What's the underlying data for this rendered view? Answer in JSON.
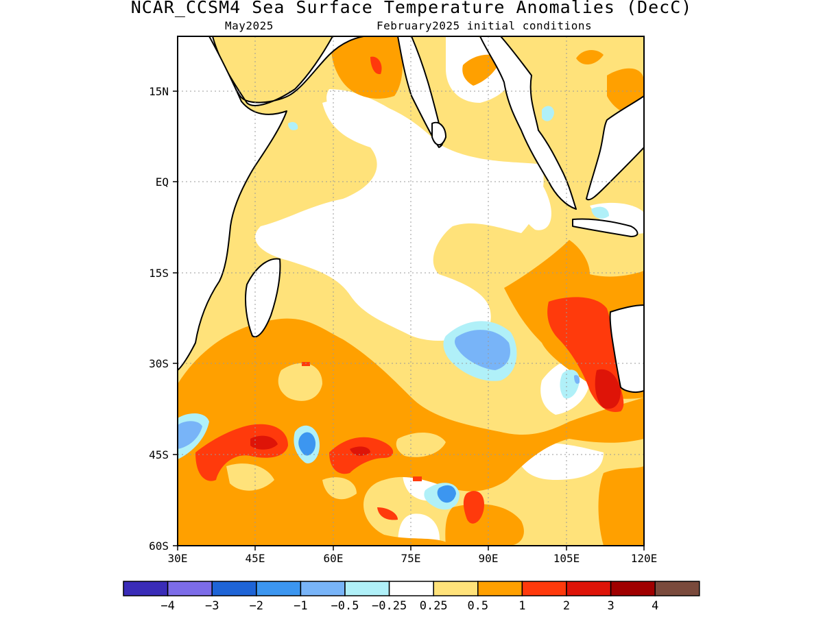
{
  "header": {
    "title": "NCAR_CCSM4 Sea Surface Temperature Anomalies (DecC)",
    "valid_month": "May2025",
    "init_conditions": "February2025 initial conditions"
  },
  "axes": {
    "lat_labels": [
      "15N",
      "EQ",
      "15S",
      "30S",
      "45S",
      "60S"
    ],
    "lon_labels": [
      "30E",
      "45E",
      "60E",
      "75E",
      "90E",
      "105E",
      "120E"
    ],
    "lat_range": [
      -60,
      24
    ],
    "lon_range": [
      30,
      120
    ],
    "grid": "dotted"
  },
  "colorbar": {
    "colors": [
      "#3a2cb8",
      "#7c6ce8",
      "#1e64d6",
      "#3c96f0",
      "#78b4f8",
      "#b0f0f8",
      "#ffffff",
      "#ffe27a",
      "#ffa000",
      "#ff3a0c",
      "#de1408",
      "#a00000",
      "#7a4a3c"
    ],
    "labels": [
      "−4",
      "−3",
      "−2",
      "−1",
      "−0.5",
      "−0.25",
      "0.25",
      "0.5",
      "1",
      "2",
      "3",
      "4"
    ]
  },
  "chart_data": {
    "type": "heatmap",
    "title": "NCAR_CCSM4 Sea Surface Temperature Anomalies (DecC)",
    "subtitle": "May2025 — February2025 initial conditions",
    "xlabel": "",
    "ylabel": "",
    "xlim": [
      30,
      120
    ],
    "ylim": [
      -60,
      24
    ],
    "x_ticks": [
      "30E",
      "45E",
      "60E",
      "75E",
      "90E",
      "105E",
      "120E"
    ],
    "y_ticks": [
      "15N",
      "EQ",
      "15S",
      "30S",
      "45S",
      "60S"
    ],
    "levels": [
      -4,
      -3,
      -2,
      -1,
      -0.5,
      -0.25,
      0.25,
      0.5,
      1,
      2,
      3,
      4
    ],
    "features": [
      {
        "region": "Arabian Sea / west of India",
        "range": "0.25 to 1"
      },
      {
        "region": "Bay of Bengal head",
        "range": "0.5 to 1"
      },
      {
        "region": "West of Australia (~20S-35S, 110E-115E)",
        "range": "1 to 3"
      },
      {
        "region": "Southern Ocean 40S-50S, 35E-70E",
        "range": "1 to 2"
      },
      {
        "region": "Central south Indian Ocean (~25S, 85E)",
        "range": "-1 to -0.25"
      },
      {
        "region": "Near 45S, 55E",
        "range": "-1 to -0.25"
      },
      {
        "region": "Near 50S, 82E",
        "range": "-2 to -0.25"
      },
      {
        "region": "Near 43S, 30E",
        "range": "-1 to -0.25"
      }
    ]
  }
}
